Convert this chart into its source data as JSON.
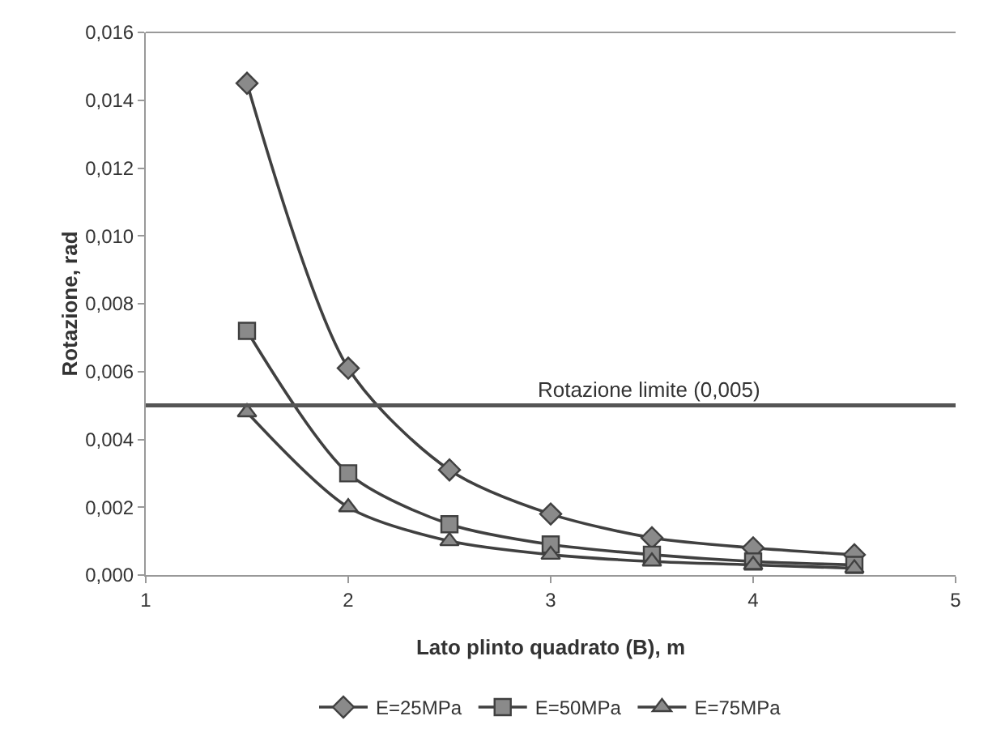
{
  "chart_data": {
    "type": "line",
    "xlabel": "Lato plinto quadrato (B), m",
    "ylabel": "Rotazione, rad",
    "x": [
      1.5,
      2,
      2.5,
      3,
      3.5,
      4,
      4.5
    ],
    "series": [
      {
        "name": "E=25MPa",
        "color": "#404040",
        "marker": "diamond",
        "values": [
          0.0145,
          0.0061,
          0.0031,
          0.0018,
          0.0011,
          0.0008,
          0.0006
        ]
      },
      {
        "name": "E=50MPa",
        "color": "#404040",
        "marker": "square",
        "values": [
          0.0072,
          0.003,
          0.0015,
          0.0009,
          0.0006,
          0.0004,
          0.0003
        ]
      },
      {
        "name": "E=75MPa",
        "color": "#404040",
        "marker": "triangle",
        "values": [
          0.0048,
          0.002,
          0.001,
          0.0006,
          0.0004,
          0.0003,
          0.0002
        ]
      }
    ],
    "xlim": [
      1,
      5
    ],
    "xticks": [
      1,
      2,
      3,
      4,
      5
    ],
    "ylim": [
      0,
      0.016
    ],
    "yticks": [
      {
        "value": 0,
        "label": "0,000"
      },
      {
        "value": 0.002,
        "label": "0,002"
      },
      {
        "value": 0.004,
        "label": "0,004"
      },
      {
        "value": 0.006,
        "label": "0,006"
      },
      {
        "value": 0.008,
        "label": "0,008"
      },
      {
        "value": 0.01,
        "label": "0,010"
      },
      {
        "value": 0.012,
        "label": "0,012"
      },
      {
        "value": 0.014,
        "label": "0,014"
      },
      {
        "value": 0.016,
        "label": "0,016"
      }
    ],
    "ref_lines": [
      {
        "axis": "y",
        "value": 0.005,
        "label": "Rotazione limite (0,005)",
        "color": "#555555"
      }
    ],
    "grid": false,
    "legend": "bottom",
    "line_style": "solid"
  }
}
